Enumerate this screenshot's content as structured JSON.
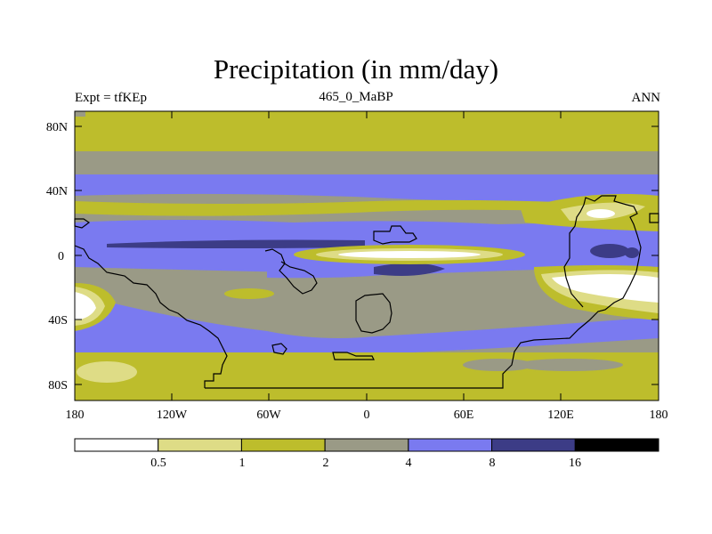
{
  "title": "Precipitation (in mm/day)",
  "left_label": "Expt = tfKEp",
  "center_label": "465_0_MaBP",
  "right_label": "ANN",
  "y_ticks": [
    "80N",
    "40N",
    "0",
    "40S",
    "80S"
  ],
  "x_ticks": [
    "180",
    "120W",
    "60W",
    "0",
    "60E",
    "120E",
    "180"
  ],
  "colorbar": {
    "levels": [
      "0.5",
      "1",
      "2",
      "4",
      "8",
      "16"
    ],
    "colors": [
      "#ffffff",
      "#dedc86",
      "#bdbd2c",
      "#9a9a86",
      "#7a7af0",
      "#3c3c86",
      "#000000"
    ]
  },
  "colors": {
    "white": "#ffffff",
    "pale": "#dedc86",
    "olive": "#bdbd2c",
    "gray": "#9a9a86",
    "blue": "#7a7af0",
    "navy": "#3c3c86",
    "black": "#000000"
  }
}
